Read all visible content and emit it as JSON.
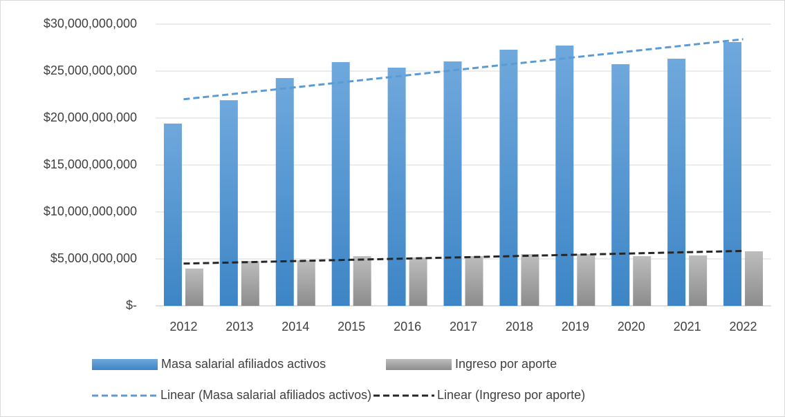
{
  "chart_data": {
    "type": "bar",
    "categories": [
      "2012",
      "2013",
      "2014",
      "2015",
      "2016",
      "2017",
      "2018",
      "2019",
      "2020",
      "2021",
      "2022"
    ],
    "series": [
      {
        "name": "Masa salarial afiliados activos",
        "color": "#5b9bd5",
        "values": [
          19410000000,
          21900000000,
          24260000000,
          25960000000,
          25370000000,
          26030000000,
          27280000000,
          27720000000,
          25740000000,
          26320000000,
          28090000000
        ]
      },
      {
        "name": "Ingreso por aporte",
        "color": "#a5a5a5",
        "values": [
          3970000000,
          4780000000,
          4850000000,
          5290000000,
          5150000000,
          5290000000,
          5510000000,
          5510000000,
          5290000000,
          5370000000,
          5810000000
        ]
      }
    ],
    "trendlines": [
      {
        "name": "Linear (Masa salarial afiliados activos)",
        "color": "#5b9bd5",
        "values": [
          22000000000,
          22640000000,
          23280000000,
          23920000000,
          24560000000,
          25200000000,
          25840000000,
          26480000000,
          27120000000,
          27760000000,
          28400000000
        ]
      },
      {
        "name": "Linear (Ingreso por aporte)",
        "color": "#262626",
        "values": [
          4500000000,
          4635000000,
          4770000000,
          4905000000,
          5040000000,
          5175000000,
          5310000000,
          5445000000,
          5580000000,
          5715000000,
          5850000000
        ]
      }
    ],
    "ylim": [
      0,
      30000000000
    ],
    "yticks": [
      {
        "value": 0,
        "label": "$-"
      },
      {
        "value": 5000000000,
        "label": "$5,000,000,000"
      },
      {
        "value": 10000000000,
        "label": "$10,000,000,000"
      },
      {
        "value": 15000000000,
        "label": "$15,000,000,000"
      },
      {
        "value": 20000000000,
        "label": "$20,000,000,000"
      },
      {
        "value": 25000000000,
        "label": "$25,000,000,000"
      },
      {
        "value": 30000000000,
        "label": "$30,000,000,000"
      }
    ],
    "grid": true
  }
}
